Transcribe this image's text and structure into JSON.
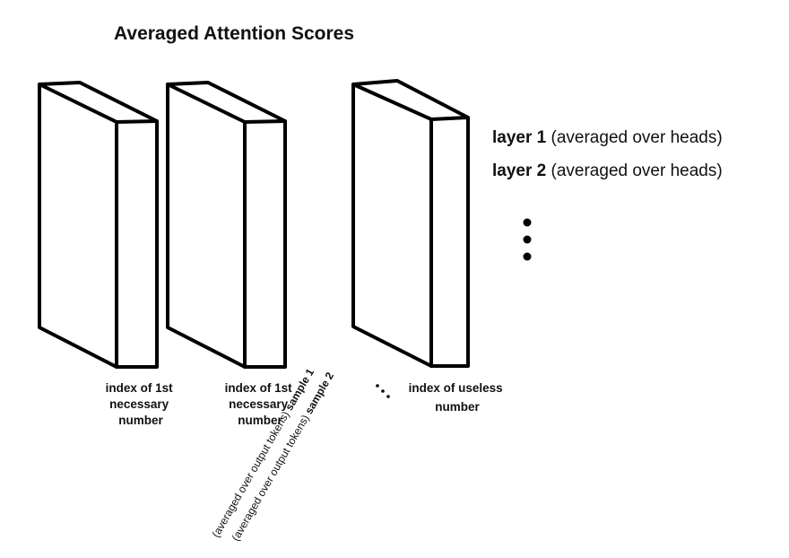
{
  "title": "Averaged Attention Scores",
  "blocks": [
    {
      "label_lines": [
        "index of 1st",
        "necessary",
        "number"
      ]
    },
    {
      "label_lines": [
        "index of 1st",
        "necessary",
        "number"
      ]
    },
    {
      "label_lines": [
        "index of useless",
        "number"
      ]
    }
  ],
  "layers": [
    {
      "name": "layer 1",
      "note": "(averaged over heads)"
    },
    {
      "name": "layer 2",
      "note": "(averaged over heads)"
    }
  ],
  "samples": [
    {
      "note": "(averaged over output tokens)",
      "name": "sample 1"
    },
    {
      "note": "(averaged over output tokens)",
      "name": "sample 2"
    }
  ]
}
